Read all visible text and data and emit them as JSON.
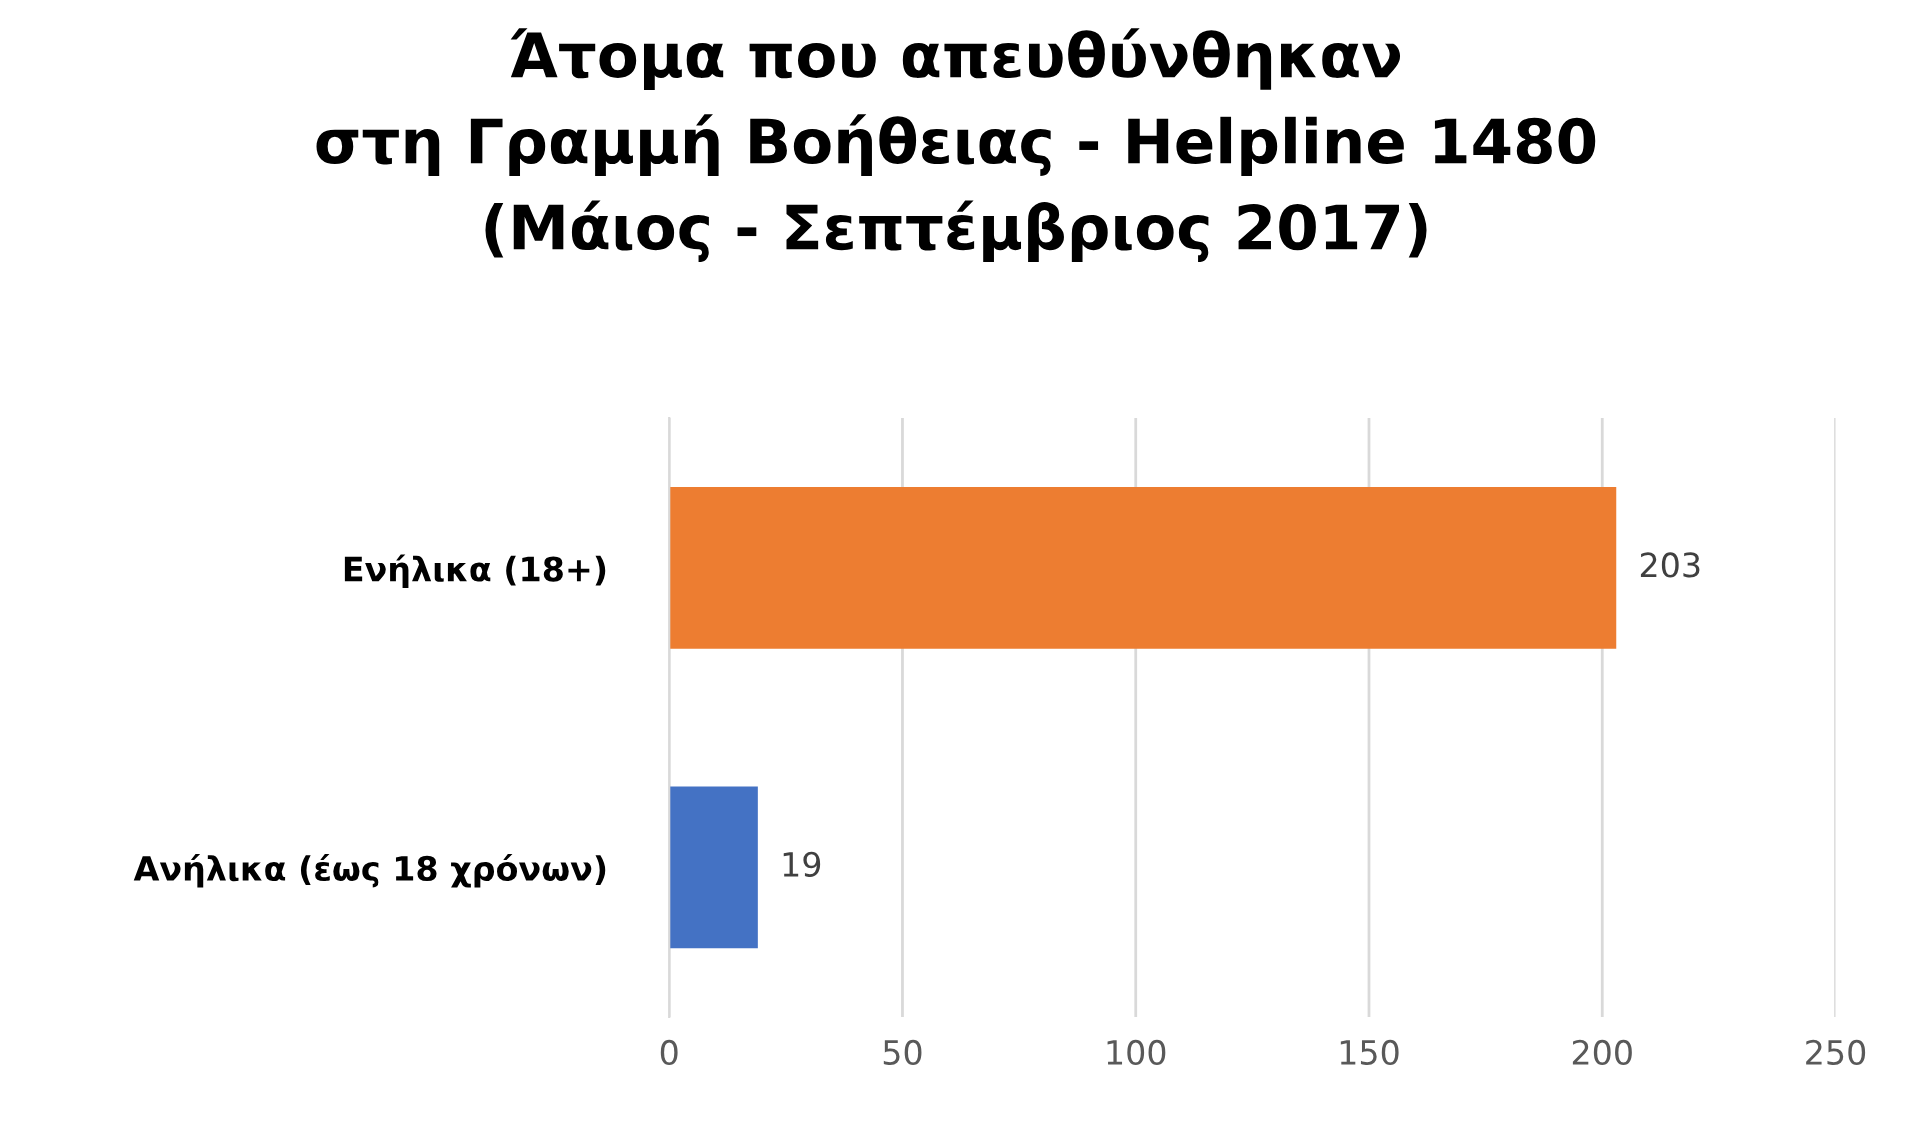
{
  "chart_data": {
    "type": "bar",
    "orientation": "horizontal",
    "title": "Άτομα που απευθύνθηκαν\nστη Γραμμή Βοήθειας - Helpline 1480\n(Μάιος - Σεπτέμβριος 2017)",
    "categories": [
      "Ενήλικα (18+)",
      "Ανήλικα (έως 18 χρόνων)"
    ],
    "values": [
      203,
      19
    ],
    "colors": [
      "#ed7d31",
      "#4472c4"
    ],
    "xlim": [
      0,
      250
    ],
    "xticks": [
      0,
      50,
      100,
      150,
      200,
      250
    ],
    "grid": "x",
    "legend": false,
    "data_labels": true
  }
}
